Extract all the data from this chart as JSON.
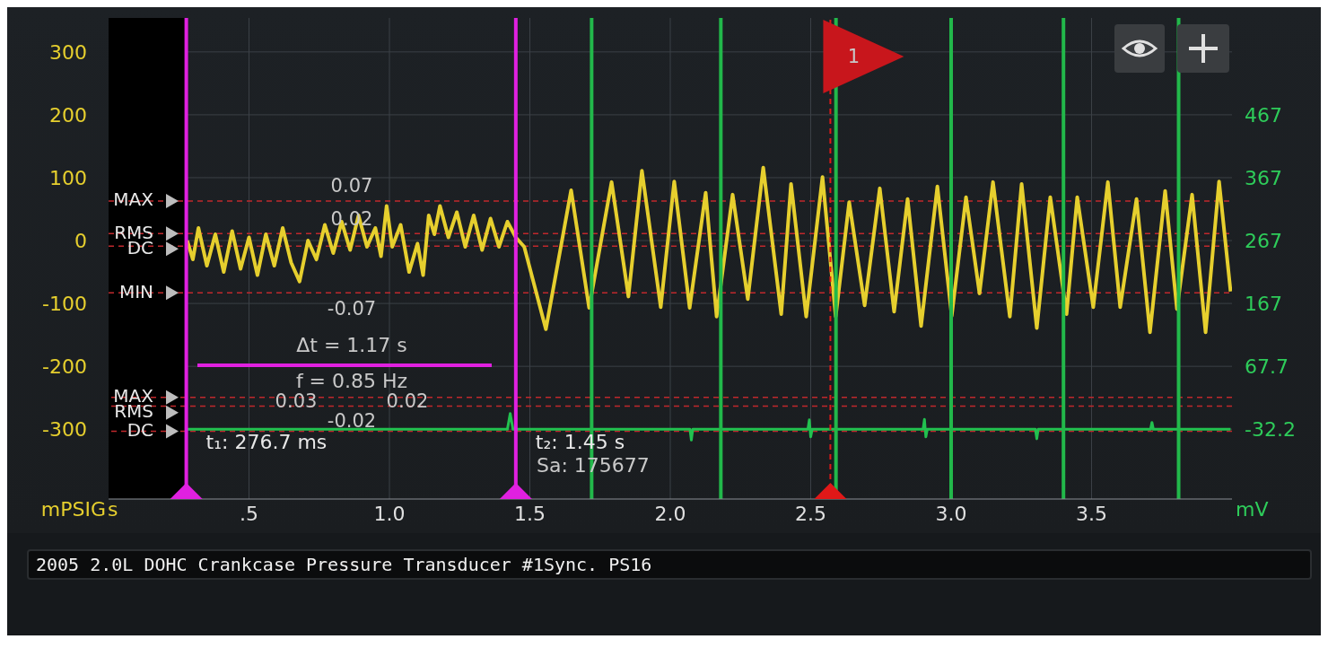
{
  "chart_data": {
    "type": "line",
    "title": "2005 2.0L DOHC Crankcase Pressure Transducer #1Sync. PS16",
    "xlabel": "s",
    "ylabel": "mPSIG",
    "y2label": "mV",
    "series": [
      {
        "color": "#e6cf2e",
        "x": [
          0.28,
          0.3,
          0.32,
          0.35,
          0.38,
          0.41,
          0.44,
          0.47,
          0.5,
          0.53,
          0.56,
          0.59,
          0.62,
          0.65,
          0.68,
          0.71,
          0.74,
          0.77,
          0.8,
          0.83,
          0.86,
          0.89,
          0.92,
          0.95,
          0.97,
          0.99,
          1.01,
          1.04,
          1.07,
          1.1,
          1.12,
          1.14,
          1.16,
          1.18,
          1.21,
          1.24,
          1.27,
          1.3,
          1.33,
          1.36,
          1.39,
          1.42,
          1.45,
          1.48,
          1.557,
          1.647,
          1.711,
          1.791,
          1.851,
          1.899,
          1.966,
          2.014,
          2.069,
          2.126,
          2.165,
          2.222,
          2.276,
          2.331,
          2.395,
          2.43,
          2.484,
          2.542,
          2.589,
          2.637,
          2.692,
          2.746,
          2.797,
          2.845,
          2.893,
          2.951,
          3.002,
          3.053,
          3.101,
          3.149,
          3.209,
          3.251,
          3.305,
          3.353,
          3.411,
          3.449,
          3.506,
          3.558,
          3.602,
          3.66,
          3.708,
          3.762,
          3.804,
          3.858,
          3.906,
          3.954,
          3.995
        ],
        "values": [
          0,
          -30,
          20,
          -40,
          10,
          -50,
          15,
          -45,
          5,
          -55,
          10,
          -40,
          20,
          -35,
          -65,
          0,
          -30,
          25,
          -20,
          30,
          -15,
          40,
          -10,
          20,
          -25,
          55,
          -10,
          25,
          -50,
          -5,
          -55,
          40,
          10,
          55,
          5,
          45,
          -10,
          40,
          -15,
          35,
          -10,
          30,
          5,
          -10,
          -141,
          80,
          -107,
          93,
          -89,
          111,
          -106,
          94,
          -107,
          76,
          -121,
          73,
          -93,
          116,
          -117,
          90,
          -121,
          101,
          -121,
          61,
          -103,
          83,
          -113,
          66,
          -136,
          86,
          -120,
          69,
          -84,
          93,
          -121,
          90,
          -139,
          69,
          -117,
          69,
          -106,
          93,
          -106,
          66,
          -146,
          79,
          -109,
          73,
          -146,
          94,
          -81
        ]
      },
      {
        "color": "#22c14f",
        "axis": "y2",
        "x": [
          0.28,
          1.42,
          1.43,
          1.44,
          2.07,
          2.075,
          2.08,
          2.49,
          2.495,
          2.5,
          2.505,
          2.9,
          2.905,
          2.91,
          2.915,
          3.3,
          3.305,
          3.31,
          3.71,
          3.715,
          3.72,
          3.995
        ],
        "values": [
          -33,
          -33,
          -8,
          -33,
          -33,
          -50,
          -33,
          -33,
          -18,
          -45,
          -33,
          -33,
          -17,
          -45,
          -33,
          -33,
          -48,
          -33,
          -33,
          -22,
          -33,
          -33
        ]
      }
    ],
    "xlim": [
      0,
      4
    ],
    "xticks": [
      {
        "value": 0.5,
        "label": ".5"
      },
      {
        "value": 1,
        "label": "1.0"
      },
      1.5,
      {
        "value": 2,
        "label": "2.0"
      },
      2.5,
      {
        "value": 3,
        "label": "3.0"
      },
      3.5
    ],
    "ylim": [
      -411,
      354
    ],
    "yticks": [
      -300,
      -200,
      -100,
      0,
      100,
      200,
      300
    ],
    "y2lim": [
      -143.8,
      621.2
    ],
    "y2ticks": [
      -32.2,
      67.7,
      167,
      267,
      367,
      467
    ],
    "grid": true,
    "marker": "none",
    "line_style": "solid",
    "bands": [
      {
        "axis": "x",
        "from": 0,
        "to": 0.277,
        "color": "#000000"
      }
    ],
    "ref_lines": [
      {
        "axis": "x",
        "value": 0.2767,
        "label": "t₁: 276.7 ms",
        "color": "#e020e0"
      },
      {
        "axis": "x",
        "value": 1.45,
        "label": "t₂: 1.45 s",
        "color": "#e020e0"
      },
      {
        "axis": "x",
        "value": 2.57,
        "color": "#e01818",
        "line_style": "dashed"
      },
      {
        "axis": "x",
        "value": 1.72,
        "color": "#22b84a"
      },
      {
        "axis": "x",
        "value": 2.18,
        "color": "#22b84a"
      },
      {
        "axis": "x",
        "value": 2.59,
        "color": "#22b84a"
      },
      {
        "axis": "x",
        "value": 3.0,
        "color": "#22b84a"
      },
      {
        "axis": "x",
        "value": 3.4,
        "color": "#22b84a"
      },
      {
        "axis": "x",
        "value": 3.81,
        "color": "#22b84a"
      },
      {
        "axis": "y",
        "value": 63,
        "label": "MAX",
        "color": "#c0282c",
        "line_style": "dashed"
      },
      {
        "axis": "y",
        "value": 11,
        "label": "RMS",
        "color": "#c0282c",
        "line_style": "dashed"
      },
      {
        "axis": "y",
        "value": -9,
        "label": "DC",
        "color": "#c0282c",
        "line_style": "dashed"
      },
      {
        "axis": "y",
        "value": -83,
        "label": "MIN",
        "color": "#c0282c",
        "line_style": "dashed"
      },
      {
        "axis": "y2",
        "value": 18,
        "label": "MAX",
        "color": "#c0282c",
        "line_style": "dashed"
      },
      {
        "axis": "y2",
        "value": 4,
        "label": "RMS",
        "color": "#c0282c",
        "line_style": "dashed"
      },
      {
        "axis": "y2",
        "value": -36,
        "label": "DC",
        "color": "#c0282c",
        "line_style": "dashed"
      }
    ],
    "annotations": [
      "0.07",
      "0.02",
      "-0.07",
      "Δt = 1.17 s",
      "f = 0.85 Hz",
      "0.03",
      "0.02",
      "-0.02",
      "Sa: 175677",
      "1"
    ]
  }
}
